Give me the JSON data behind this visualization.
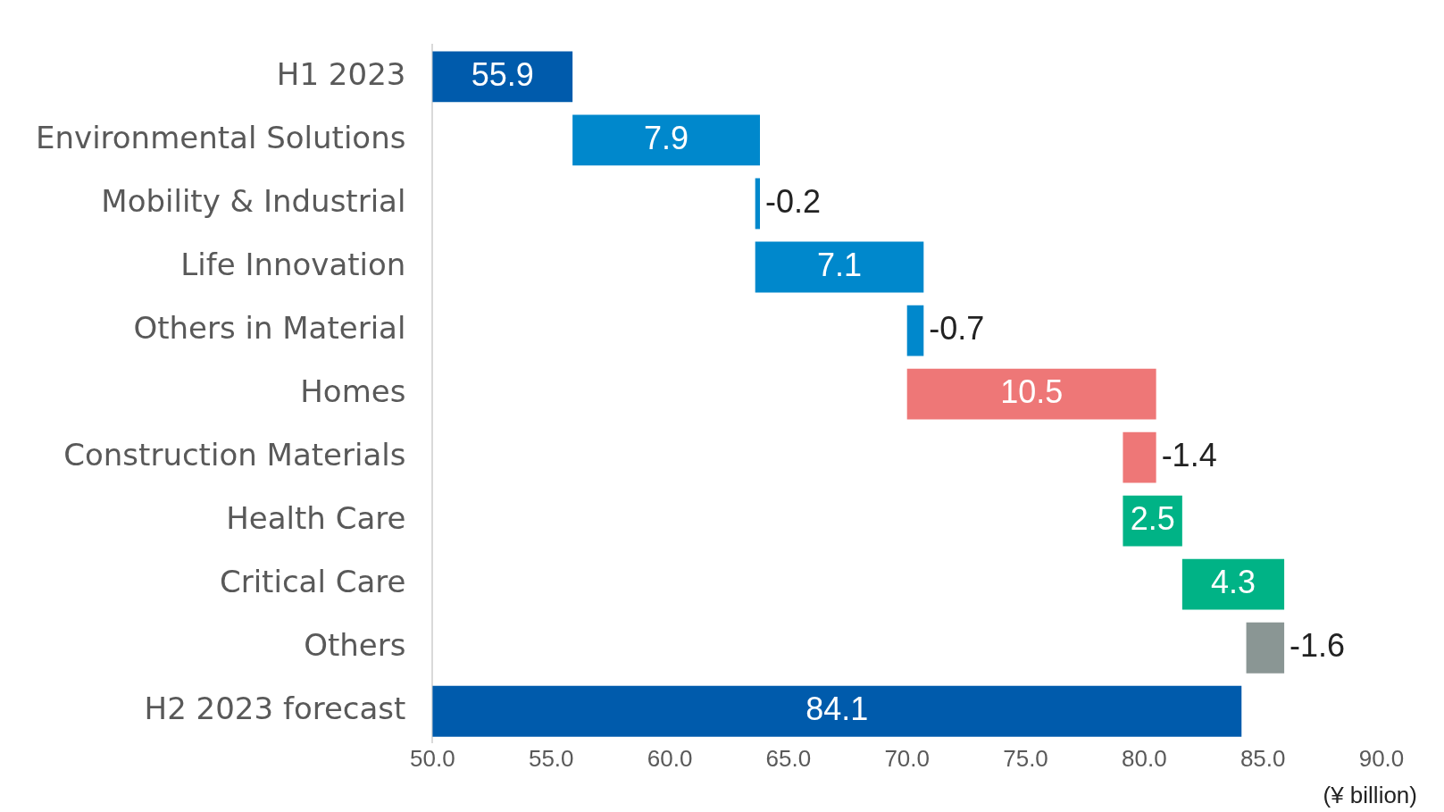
{
  "chart_data": {
    "type": "bar",
    "orientation": "horizontal",
    "categories": [
      "H1 2023",
      "Environmental Solutions",
      "Mobility & Industrial",
      "Life Innovation",
      "Others in Material",
      "Homes",
      "Construction Materials",
      "Health Care",
      "Critical Care",
      "Others",
      "H2 2023 forecast"
    ],
    "values": [
      55.9,
      7.9,
      -0.2,
      7.1,
      -0.7,
      10.5,
      -1.4,
      2.5,
      4.3,
      -1.6,
      84.1
    ],
    "base": [
      0,
      55.9,
      63.8,
      63.6,
      70.7,
      70.0,
      80.5,
      79.1,
      81.6,
      85.9,
      0
    ],
    "colors": [
      "#005bac",
      "#0088cc",
      "#0088cc",
      "#0088cc",
      "#0088cc",
      "#ee7777",
      "#ee7777",
      "#00b386",
      "#00b386",
      "#8a9694",
      "#005bac"
    ],
    "xlim": [
      50,
      90
    ],
    "xticks": [
      {
        "value": 50,
        "label": "50.0"
      },
      {
        "value": 55,
        "label": "55.0"
      },
      {
        "value": 60,
        "label": "60.0"
      },
      {
        "value": 65,
        "label": "65.0"
      },
      {
        "value": 70,
        "label": "70.0"
      },
      {
        "value": 75,
        "label": "75.0"
      },
      {
        "value": 80,
        "label": "80.0"
      },
      {
        "value": 85,
        "label": "85.0"
      },
      {
        "value": 90,
        "label": "90.0"
      }
    ],
    "data_labels": true,
    "grid": false,
    "legend": false,
    "annotations": [
      "(¥ billion)"
    ]
  }
}
